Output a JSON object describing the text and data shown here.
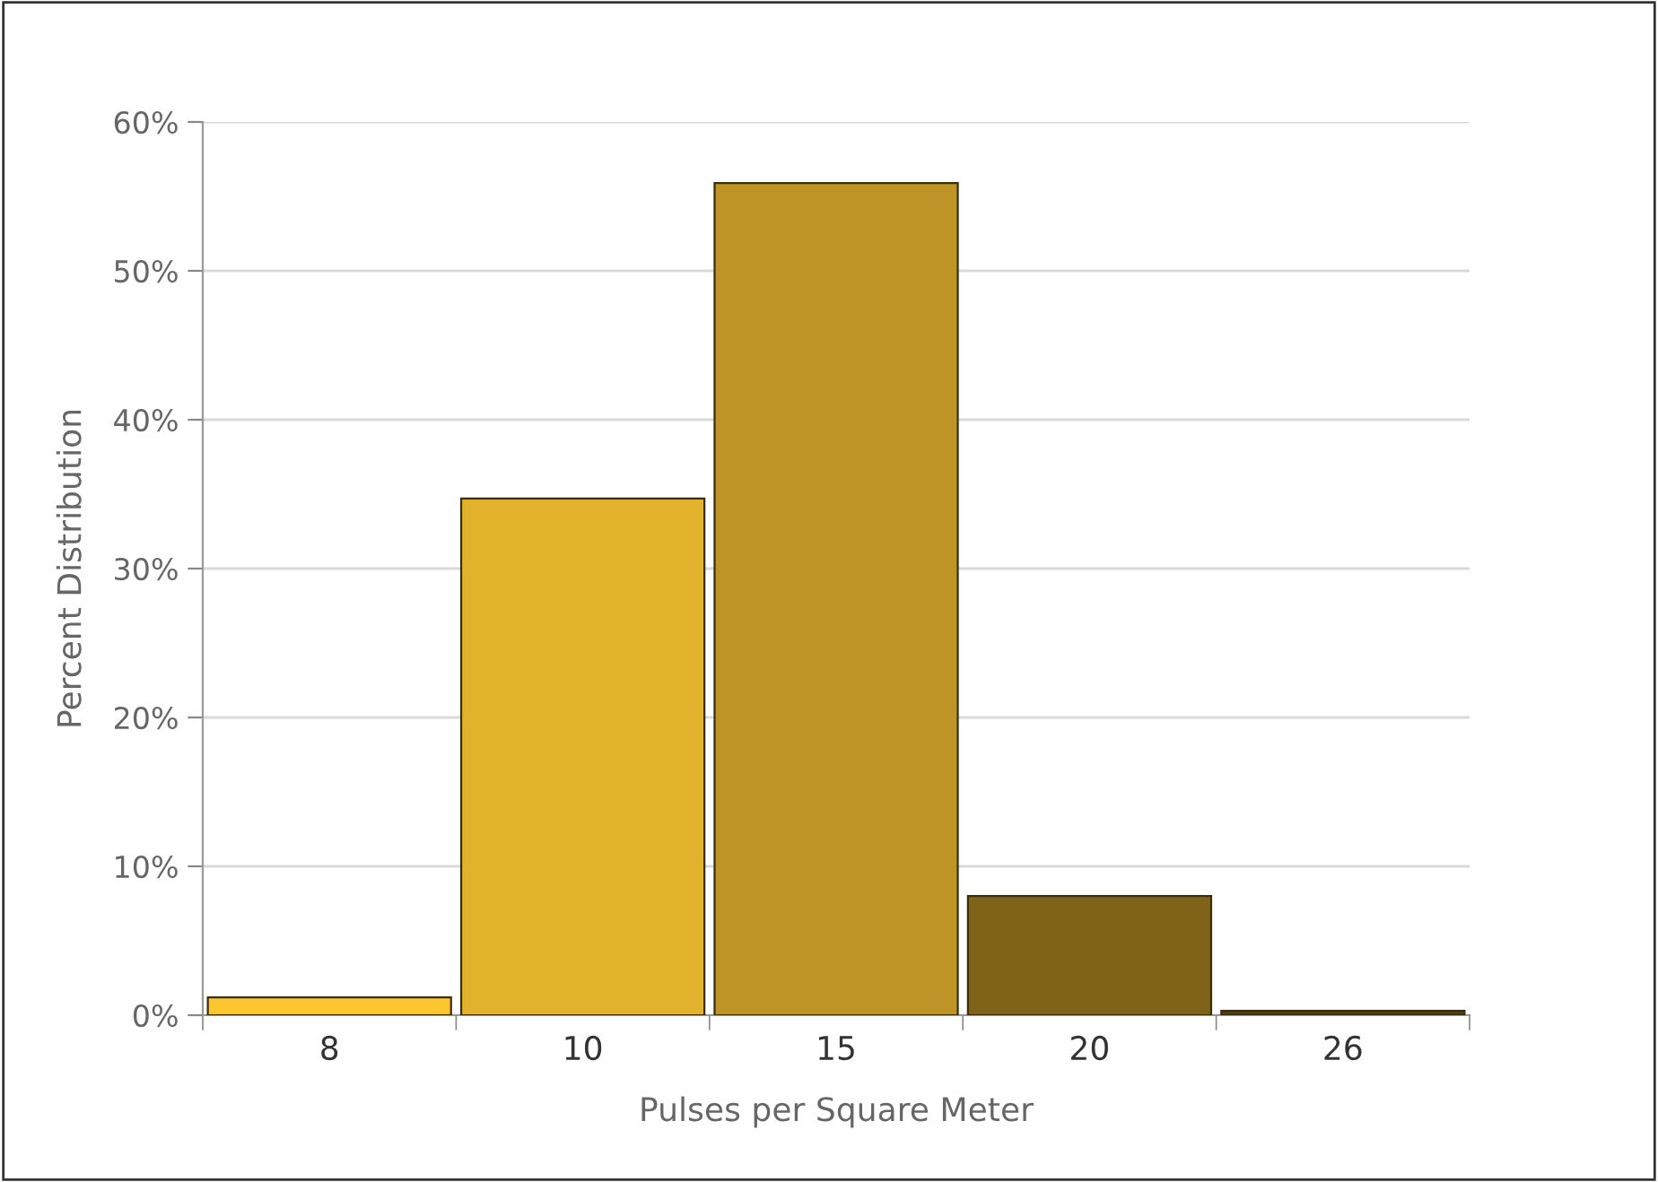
{
  "chart_data": {
    "type": "bar",
    "xlabel": "Pulses per Square Meter",
    "ylabel": "Percent Distribution",
    "categories": [
      "8",
      "10",
      "15",
      "20",
      "26"
    ],
    "values": [
      1.2,
      34.7,
      55.9,
      8.0,
      0.3
    ],
    "colors": [
      "#fec62e",
      "#e3b22c",
      "#bf9426",
      "#7e6319",
      "#4f3d12"
    ],
    "ylim": [
      0,
      60
    ],
    "yticks": [
      {
        "value": 0,
        "label": "0%"
      },
      {
        "value": 10,
        "label": "10%"
      },
      {
        "value": 20,
        "label": "20%"
      },
      {
        "value": 30,
        "label": "30%"
      },
      {
        "value": 40,
        "label": "40%"
      },
      {
        "value": 50,
        "label": "50%"
      },
      {
        "value": 60,
        "label": "60%"
      }
    ],
    "grid": "y"
  }
}
